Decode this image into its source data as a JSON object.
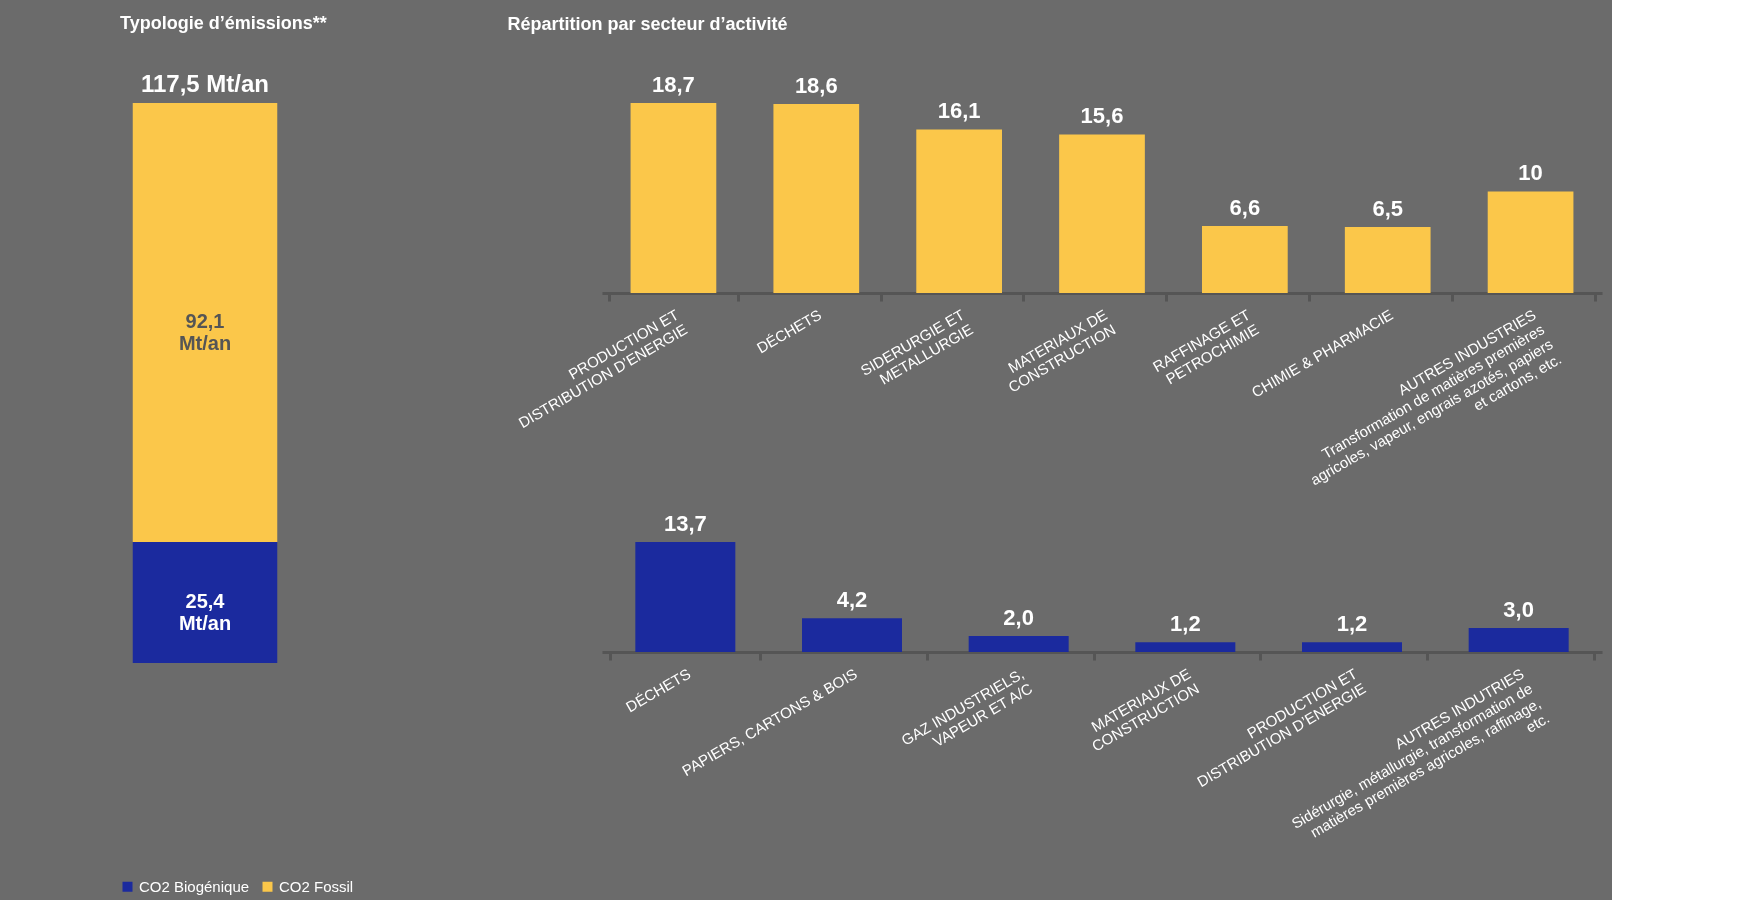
{
  "chart_data": [
    {
      "type": "bar",
      "title": "Typologie d’émissions**",
      "stacked": true,
      "categories": [
        null
      ],
      "tick_labels": false,
      "legend": "bottom",
      "series": [
        {
          "name": "CO2 Biogénique",
          "color": "#1b2a9e",
          "values": [
            25.4
          ],
          "value_labels": [
            "25,4\nMt/an"
          ]
        },
        {
          "name": "CO2 Fossil",
          "color": "#fbc74a",
          "values": [
            92.1
          ],
          "value_labels": [
            "92,1\nMt/an"
          ]
        }
      ],
      "totals": [
        "117,5 Mt/an"
      ]
    },
    {
      "type": "bar",
      "title": "Répartition par secteur d’activité",
      "tick_labels": "x",
      "color": "#fbc74a",
      "categories": [
        "PRODUCTION ET\nDISTRIBUTION D’ENERGIE",
        "DÉCHETS",
        "SIDERURGIE ET\nMETALLURGIE",
        "MATERIAUX DE\nCONSTRUCTION",
        "RAFFINAGE ET\nPETROCHIMIE",
        "CHIMIE & PHARMACIE",
        "AUTRES INDUSTRIES\nTransformation de matières premières\nagricoles, vapeur, engrais azotés, papiers\net cartons, etc."
      ],
      "values": [
        18.7,
        18.6,
        16.1,
        15.6,
        6.6,
        6.5,
        10
      ],
      "value_labels": [
        "18,7",
        "18,6",
        "16,1",
        "15,6",
        "6,6",
        "6,5",
        "10"
      ]
    },
    {
      "type": "bar",
      "tick_labels": "x",
      "color": "#1b2a9e",
      "categories": [
        "DÉCHETS",
        "PAPIERS, CARTONS & BOIS",
        "GAZ INDUSTRIELS,\nVAPEUR ET A/C",
        "MATERIAUX DE\nCONSTRUCTION",
        "PRODUCTION ET\nDISTRIBUTION D’ENERGIE",
        "AUTRES INDUTRIES\nSidérurgie, métallurgie, transformation de\nmatières premières agricoles, raffinage,\netc."
      ],
      "values": [
        13.7,
        4.2,
        2.0,
        1.2,
        1.2,
        3.0
      ],
      "value_labels": [
        "13,7",
        "4,2",
        "2,0",
        "1,2",
        "1,2",
        "3,0"
      ]
    }
  ]
}
